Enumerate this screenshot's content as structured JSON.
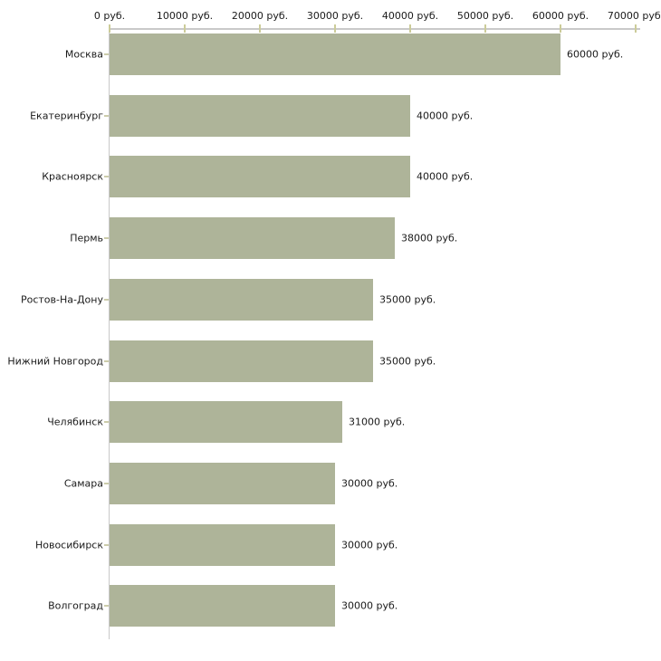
{
  "chart_data": {
    "type": "bar",
    "orientation": "horizontal",
    "title": "",
    "xlabel": "",
    "ylabel": "",
    "unit": "руб.",
    "categories": [
      "Москва",
      "Екатеринбург",
      "Красноярск",
      "Пермь",
      "Ростов-На-Дону",
      "Нижний Новгород",
      "Челябинск",
      "Самара",
      "Новосибирск",
      "Волгоград"
    ],
    "values": [
      60000,
      40000,
      40000,
      38000,
      35000,
      35000,
      31000,
      30000,
      30000,
      30000
    ],
    "value_labels": [
      "60000 руб.",
      "40000 руб.",
      "40000 руб.",
      "38000 руб.",
      "35000 руб.",
      "35000 руб.",
      "31000 руб.",
      "30000 руб.",
      "30000 руб.",
      "30000 руб."
    ],
    "x_ticks": [
      0,
      10000,
      20000,
      30000,
      40000,
      50000,
      60000,
      70000
    ],
    "x_tick_labels": [
      "0 руб.",
      "10000 руб.",
      "20000 руб.",
      "30000 руб.",
      "40000 руб.",
      "50000 руб.",
      "60000 руб.",
      "70000 руб."
    ],
    "xlim": [
      0,
      70000
    ],
    "grid": false,
    "legend": "none",
    "axis_position": "top",
    "colors": {
      "bar": "#aeb499",
      "axis_line": "#c9c9c9",
      "tick": "#cccc99",
      "category_tick": "#ccccaa",
      "text": "#1a1a1a",
      "background": "#ffffff"
    }
  }
}
